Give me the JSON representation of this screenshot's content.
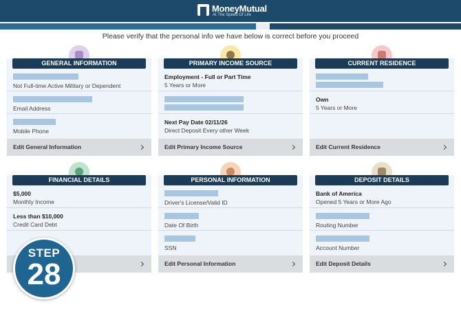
{
  "header": {
    "logo": "MoneyMutual",
    "tagline": "At The Speed Of Life"
  },
  "instruction": "Please verify that the personal info we have below is correct before you proceed",
  "cards": [
    {
      "title": "GENERAL INFORMATION",
      "sections": [
        {
          "label": "Not Full-time Active Military or Dependent"
        },
        {
          "label": "Email Address"
        },
        {
          "label": "Mobile Phone"
        }
      ],
      "edit": "Edit General Information"
    },
    {
      "title": "PRIMARY INCOME SOURCE",
      "sections": [
        {
          "value": "Employment - Full or Part Time",
          "label": "5 Years or More"
        },
        {
          "value": "Next Pay Date 02/11/26",
          "label": "Direct Deposit Every other Week"
        }
      ],
      "edit": "Edit Primary Income Source"
    },
    {
      "title": "CURRENT RESIDENCE",
      "sections": [
        {
          "value": "Own",
          "label": "5 Years or More"
        }
      ],
      "edit": "Edit Current Residence"
    },
    {
      "title": "FINANCIAL DETAILS",
      "sections": [
        {
          "value": "$5,000",
          "label": "Monthly Income"
        },
        {
          "value": "Less than $10,000",
          "label": "Credit Card Debt"
        }
      ]
    },
    {
      "title": "PERSONAL INFORMATION",
      "sections": [
        {
          "label": "Driver's License/Valid ID"
        },
        {
          "label": "Date Of Birth"
        },
        {
          "label": "SSN"
        }
      ],
      "edit": "Edit Personal Information"
    },
    {
      "title": "DEPOSIT DETAILS",
      "sections": [
        {
          "value": "Bank of America",
          "label": "Opened 5 Years or More Ago"
        },
        {
          "label": "Routing Number"
        },
        {
          "label": "Account Number"
        }
      ],
      "edit": "Edit Deposit Details"
    }
  ],
  "badge": {
    "step": "STEP",
    "number": "28"
  }
}
